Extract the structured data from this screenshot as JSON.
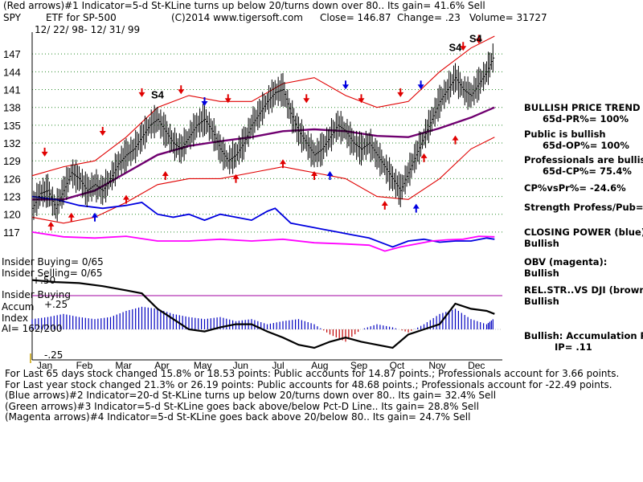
{
  "header": {
    "line1": "(Red arrows)#1 Indicator=5-d St-KLine turns up below 20/turns down over 80.. Its gain= 41.6% Sell",
    "symbol": "SPY",
    "desc": "ETF for SP-500",
    "copyright": "(C)2014 www.tigersoft.com",
    "close": "Close=  146.87",
    "change": "Change= .23",
    "volume": "Volume= 31727",
    "daterange": "12/ 22/ 98- 12/ 31/ 99"
  },
  "side_panel": {
    "trend_title": "BULLISH PRICE TREND",
    "pr": "65d-PR%= 100%",
    "public_title": "Public is bullish",
    "op": "65d-OP%= 100%",
    "prof_title": "Professionals are bullish",
    "cp": "65d-CP%= 75.4%",
    "cpvspr": "CP%vsPr%= -24.6%",
    "strength": "Strength Profess/Pub= .2",
    "closing_power": "CLOSING POWER (blue):",
    "closing_power_val": "Bullish",
    "obv": "OBV (magenta):",
    "obv_val": "Bullish",
    "relstr": "REL.STR..VS DJI (brown)",
    "relstr_val": "Bullish",
    "accum": "Bullish: Accumulation Risi",
    "ip": "IP= .11"
  },
  "lower_panel": {
    "insider_buying": "Insider Buying= 0/65",
    "insider_selling": "Insider Selling= 0/65",
    "insider_line": "Insider Buying",
    "accum": "Accum",
    "index": "Index",
    "ai": "AI= 162/200",
    "tick_50": "+.50",
    "tick_25": "+.25",
    "tick_m25": "-.25"
  },
  "footer": {
    "line1": "For Last 65 days stock changed  15.8% or  18.53 points:  Public accounts for  14.87 points.;  Professionals account for  3.66 points.",
    "line2": "For Last year stock changed  21.3% or  26.19 points:  Public accounts for  48.68 points.;  Professionals account for -22.49 points.",
    "line3": "(Blue arrows)#2 Indicator=20-d St-KLine turns up below 20/turns down over 80.. Its gain= 32.4% Sell",
    "line4": "(Green arrows)#3 Indicator=5-d St-KLine goes back above/below Pct-D Line.. Its gain= 28.8% Sell",
    "line5": "(Magenta arrows)#4 Indicator=5-d St-KLine goes back above 20/below 80.. Its gain= 24.7% Sell"
  },
  "chart_data": {
    "type": "line",
    "title": "SPY",
    "y_ticks": [
      117,
      120,
      123,
      126,
      129,
      132,
      135,
      138,
      141,
      144,
      147
    ],
    "ylim": [
      115.5,
      150
    ],
    "months": [
      "Jan",
      "Feb",
      "Mar",
      "Apr",
      "May",
      "Jun",
      "Jul",
      "Aug",
      "Sep",
      "Oct",
      "Nov",
      "Dec"
    ],
    "price": [
      [
        0,
        121
      ],
      [
        5,
        123.5
      ],
      [
        10,
        124
      ],
      [
        15,
        121
      ],
      [
        20,
        124
      ],
      [
        25,
        127
      ],
      [
        30,
        126
      ],
      [
        35,
        124
      ],
      [
        40,
        125
      ],
      [
        45,
        124
      ],
      [
        50,
        126
      ],
      [
        55,
        128.5
      ],
      [
        60,
        130
      ],
      [
        65,
        131
      ],
      [
        70,
        133
      ],
      [
        75,
        135
      ],
      [
        80,
        136
      ],
      [
        85,
        134
      ],
      [
        90,
        132
      ],
      [
        95,
        131
      ],
      [
        100,
        133
      ],
      [
        105,
        135
      ],
      [
        110,
        136
      ],
      [
        115,
        134
      ],
      [
        120,
        131
      ],
      [
        125,
        129
      ],
      [
        130,
        130
      ],
      [
        135,
        132
      ],
      [
        140,
        135
      ],
      [
        145,
        137
      ],
      [
        150,
        139
      ],
      [
        155,
        140.5
      ],
      [
        160,
        141
      ],
      [
        165,
        137
      ],
      [
        170,
        134
      ],
      [
        175,
        132
      ],
      [
        180,
        130
      ],
      [
        185,
        131
      ],
      [
        190,
        133
      ],
      [
        195,
        135
      ],
      [
        200,
        134
      ],
      [
        205,
        132
      ],
      [
        210,
        131
      ],
      [
        215,
        132
      ],
      [
        220,
        130
      ],
      [
        225,
        128
      ],
      [
        230,
        126
      ],
      [
        235,
        124
      ],
      [
        240,
        127
      ],
      [
        245,
        130
      ],
      [
        250,
        133
      ],
      [
        255,
        136
      ],
      [
        260,
        139
      ],
      [
        265,
        141
      ],
      [
        270,
        143
      ],
      [
        275,
        141
      ],
      [
        280,
        140
      ],
      [
        285,
        142
      ],
      [
        290,
        144
      ],
      [
        295,
        146.9
      ]
    ],
    "ma": [
      [
        0,
        122.5
      ],
      [
        20,
        122.5
      ],
      [
        40,
        124
      ],
      [
        60,
        127
      ],
      [
        80,
        130
      ],
      [
        100,
        131.5
      ],
      [
        120,
        132.3
      ],
      [
        140,
        133
      ],
      [
        160,
        134
      ],
      [
        180,
        134.3
      ],
      [
        200,
        134
      ],
      [
        220,
        133.2
      ],
      [
        240,
        133
      ],
      [
        260,
        134.5
      ],
      [
        280,
        136.3
      ],
      [
        295,
        138
      ]
    ],
    "upper_band": [
      [
        0,
        126.5
      ],
      [
        20,
        128
      ],
      [
        40,
        129
      ],
      [
        60,
        133
      ],
      [
        80,
        138
      ],
      [
        100,
        140
      ],
      [
        120,
        139
      ],
      [
        140,
        139
      ],
      [
        160,
        142
      ],
      [
        180,
        143
      ],
      [
        200,
        140
      ],
      [
        220,
        138
      ],
      [
        240,
        139
      ],
      [
        260,
        144
      ],
      [
        280,
        148
      ],
      [
        295,
        150
      ]
    ],
    "lower_band": [
      [
        0,
        119.5
      ],
      [
        20,
        118.5
      ],
      [
        40,
        119.5
      ],
      [
        60,
        122
      ],
      [
        80,
        125
      ],
      [
        100,
        126
      ],
      [
        120,
        126
      ],
      [
        140,
        127
      ],
      [
        160,
        128
      ],
      [
        180,
        127
      ],
      [
        200,
        126
      ],
      [
        220,
        123
      ],
      [
        240,
        122.5
      ],
      [
        260,
        126
      ],
      [
        280,
        131
      ],
      [
        295,
        133
      ]
    ],
    "closing_power": [
      [
        0,
        123
      ],
      [
        15,
        122.5
      ],
      [
        30,
        121.5
      ],
      [
        45,
        121
      ],
      [
        60,
        121.5
      ],
      [
        70,
        122
      ],
      [
        80,
        120
      ],
      [
        90,
        119.5
      ],
      [
        100,
        120
      ],
      [
        110,
        119
      ],
      [
        120,
        120
      ],
      [
        130,
        119.5
      ],
      [
        140,
        119
      ],
      [
        150,
        120.5
      ],
      [
        155,
        121
      ],
      [
        165,
        118.5
      ],
      [
        175,
        118
      ],
      [
        185,
        117.5
      ],
      [
        195,
        117
      ],
      [
        205,
        116.5
      ],
      [
        215,
        116
      ],
      [
        225,
        115
      ],
      [
        230,
        114.5
      ],
      [
        240,
        115.5
      ],
      [
        250,
        115.8
      ],
      [
        260,
        115.3
      ],
      [
        270,
        115.5
      ],
      [
        280,
        115.5
      ],
      [
        290,
        116
      ],
      [
        295,
        115.8
      ]
    ],
    "obv": [
      [
        0,
        117
      ],
      [
        20,
        116.2
      ],
      [
        40,
        116
      ],
      [
        60,
        116.3
      ],
      [
        80,
        115.5
      ],
      [
        100,
        115.5
      ],
      [
        120,
        115.8
      ],
      [
        140,
        115.5
      ],
      [
        160,
        115.8
      ],
      [
        180,
        115.2
      ],
      [
        200,
        115
      ],
      [
        215,
        114.8
      ],
      [
        225,
        113.8
      ],
      [
        235,
        114.5
      ],
      [
        245,
        115
      ],
      [
        255,
        115.5
      ],
      [
        265,
        115.7
      ],
      [
        275,
        115.8
      ],
      [
        285,
        116.3
      ],
      [
        295,
        116.2
      ]
    ],
    "accum_index": [
      [
        0,
        0.1
      ],
      [
        10,
        0.12
      ],
      [
        20,
        0.15
      ],
      [
        30,
        0.12
      ],
      [
        40,
        0.1
      ],
      [
        50,
        0.12
      ],
      [
        60,
        0.18
      ],
      [
        70,
        0.22
      ],
      [
        80,
        0.2
      ],
      [
        90,
        0.15
      ],
      [
        100,
        0.12
      ],
      [
        110,
        0.1
      ],
      [
        120,
        0.12
      ],
      [
        130,
        0.08
      ],
      [
        140,
        0.1
      ],
      [
        150,
        0.05
      ],
      [
        160,
        0.08
      ],
      [
        170,
        0.1
      ],
      [
        180,
        0.05
      ],
      [
        190,
        -0.05
      ],
      [
        200,
        -0.12
      ],
      [
        210,
        0
      ],
      [
        220,
        0.05
      ],
      [
        230,
        0.02
      ],
      [
        240,
        -0.03
      ],
      [
        250,
        0.05
      ],
      [
        260,
        0.15
      ],
      [
        270,
        0.2
      ],
      [
        280,
        0.1
      ],
      [
        290,
        0.05
      ],
      [
        295,
        0.11
      ]
    ],
    "rel_strength": [
      [
        0,
        0.48
      ],
      [
        15,
        0.46
      ],
      [
        30,
        0.45
      ],
      [
        45,
        0.42
      ],
      [
        60,
        0.38
      ],
      [
        70,
        0.35
      ],
      [
        80,
        0.2
      ],
      [
        90,
        0.1
      ],
      [
        100,
        0
      ],
      [
        110,
        -0.02
      ],
      [
        120,
        0.02
      ],
      [
        130,
        0.05
      ],
      [
        140,
        0.05
      ],
      [
        150,
        -0.02
      ],
      [
        160,
        -0.08
      ],
      [
        170,
        -0.15
      ],
      [
        180,
        -0.18
      ],
      [
        190,
        -0.12
      ],
      [
        200,
        -0.08
      ],
      [
        210,
        -0.12
      ],
      [
        220,
        -0.15
      ],
      [
        230,
        -0.18
      ],
      [
        240,
        -0.05
      ],
      [
        250,
        0
      ],
      [
        260,
        0.05
      ],
      [
        270,
        0.25
      ],
      [
        280,
        0.2
      ],
      [
        290,
        0.18
      ],
      [
        295,
        0.15
      ]
    ],
    "signals": {
      "red_up": [
        [
          12,
          118.5
        ],
        [
          25,
          120
        ],
        [
          60,
          123
        ],
        [
          85,
          127
        ],
        [
          130,
          126.5
        ],
        [
          160,
          129
        ],
        [
          180,
          127
        ],
        [
          225,
          122
        ],
        [
          250,
          130
        ],
        [
          270,
          133
        ]
      ],
      "red_down": [
        [
          8,
          130
        ],
        [
          45,
          133.5
        ],
        [
          70,
          140
        ],
        [
          95,
          140.5
        ],
        [
          125,
          139
        ],
        [
          175,
          139
        ],
        [
          210,
          139
        ],
        [
          235,
          140
        ],
        [
          275,
          147.8
        ],
        [
          285,
          149
        ]
      ],
      "blue_up": [
        [
          40,
          120
        ],
        [
          190,
          127
        ],
        [
          245,
          121.5
        ]
      ],
      "blue_down": [
        [
          110,
          138.5
        ],
        [
          200,
          141.3
        ],
        [
          248,
          141.3
        ]
      ],
      "sell_labels": [
        [
          80,
          139.5,
          "S4"
        ],
        [
          270,
          147.5,
          "S4"
        ],
        [
          283,
          149,
          "S4"
        ]
      ]
    }
  }
}
